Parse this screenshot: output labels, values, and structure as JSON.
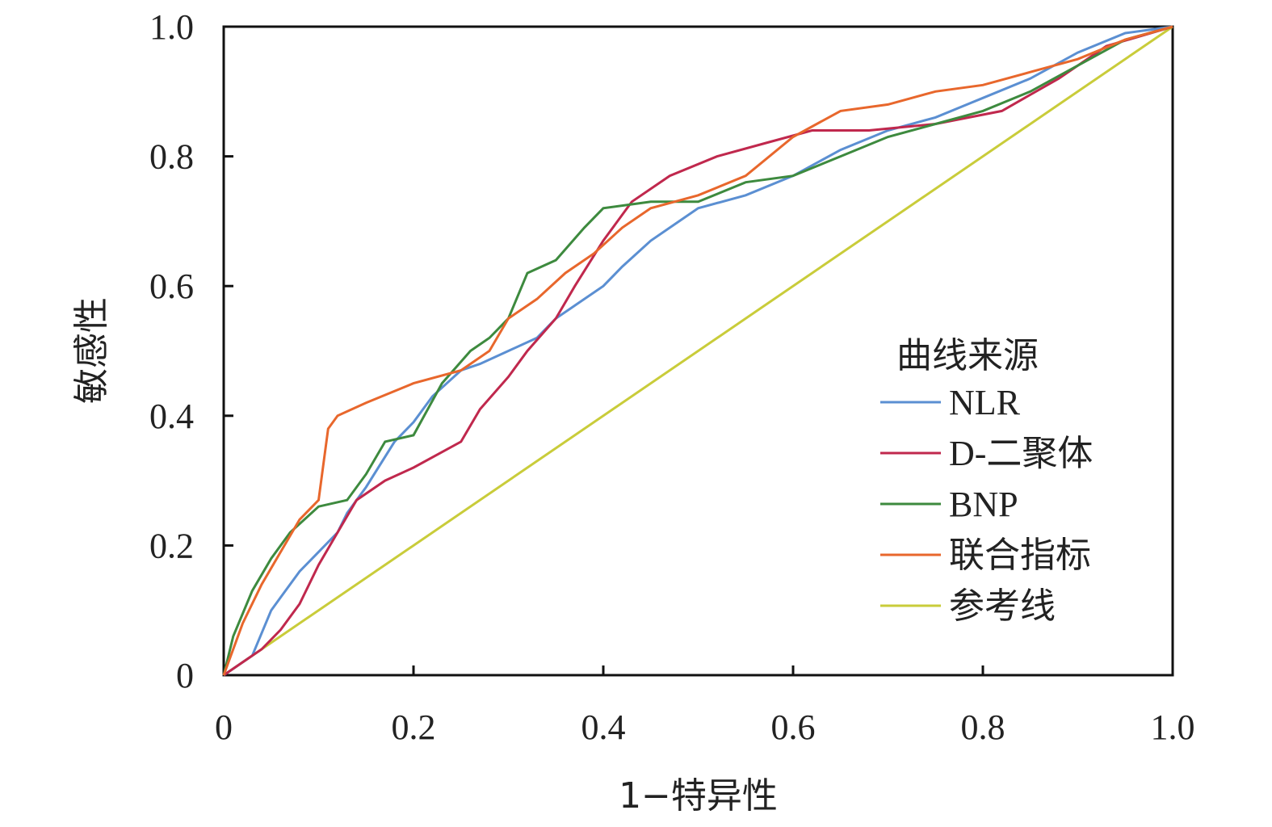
{
  "chart_data": {
    "type": "line",
    "title": "",
    "xlabel": "1−特异性",
    "ylabel": "敏感性",
    "xlim": [
      0,
      1
    ],
    "ylim": [
      0,
      1
    ],
    "grid": false,
    "legend_position": "right",
    "x_ticks": [
      "0",
      "0.2",
      "0.4",
      "0.6",
      "0.8",
      "1.0"
    ],
    "y_ticks": [
      "0",
      "0.2",
      "0.4",
      "0.6",
      "0.8",
      "1.0"
    ],
    "legend_title": "曲线来源",
    "series": [
      {
        "name": "NLR",
        "color": "#5b8fd2",
        "points": [
          [
            0,
            0
          ],
          [
            0.03,
            0.03
          ],
          [
            0.05,
            0.1
          ],
          [
            0.06,
            0.12
          ],
          [
            0.08,
            0.16
          ],
          [
            0.1,
            0.19
          ],
          [
            0.12,
            0.22
          ],
          [
            0.13,
            0.25
          ],
          [
            0.15,
            0.29
          ],
          [
            0.18,
            0.36
          ],
          [
            0.2,
            0.39
          ],
          [
            0.22,
            0.43
          ],
          [
            0.25,
            0.47
          ],
          [
            0.27,
            0.48
          ],
          [
            0.3,
            0.5
          ],
          [
            0.33,
            0.52
          ],
          [
            0.35,
            0.55
          ],
          [
            0.37,
            0.57
          ],
          [
            0.4,
            0.6
          ],
          [
            0.42,
            0.63
          ],
          [
            0.45,
            0.67
          ],
          [
            0.48,
            0.7
          ],
          [
            0.5,
            0.72
          ],
          [
            0.55,
            0.74
          ],
          [
            0.6,
            0.77
          ],
          [
            0.65,
            0.81
          ],
          [
            0.7,
            0.84
          ],
          [
            0.75,
            0.86
          ],
          [
            0.8,
            0.89
          ],
          [
            0.85,
            0.92
          ],
          [
            0.9,
            0.96
          ],
          [
            0.95,
            0.99
          ],
          [
            1,
            1
          ]
        ]
      },
      {
        "name": "D-二聚体",
        "color": "#c0284d",
        "points": [
          [
            0,
            0
          ],
          [
            0.04,
            0.04
          ],
          [
            0.06,
            0.07
          ],
          [
            0.08,
            0.11
          ],
          [
            0.1,
            0.17
          ],
          [
            0.12,
            0.22
          ],
          [
            0.14,
            0.27
          ],
          [
            0.17,
            0.3
          ],
          [
            0.2,
            0.32
          ],
          [
            0.25,
            0.36
          ],
          [
            0.27,
            0.41
          ],
          [
            0.3,
            0.46
          ],
          [
            0.32,
            0.5
          ],
          [
            0.35,
            0.55
          ],
          [
            0.37,
            0.6
          ],
          [
            0.4,
            0.67
          ],
          [
            0.43,
            0.73
          ],
          [
            0.47,
            0.77
          ],
          [
            0.52,
            0.8
          ],
          [
            0.57,
            0.82
          ],
          [
            0.62,
            0.84
          ],
          [
            0.68,
            0.84
          ],
          [
            0.75,
            0.85
          ],
          [
            0.82,
            0.87
          ],
          [
            0.88,
            0.92
          ],
          [
            0.93,
            0.97
          ],
          [
            1,
            1
          ]
        ]
      },
      {
        "name": "BNP",
        "color": "#3d8a3e",
        "points": [
          [
            0,
            0
          ],
          [
            0.01,
            0.06
          ],
          [
            0.03,
            0.13
          ],
          [
            0.05,
            0.18
          ],
          [
            0.07,
            0.22
          ],
          [
            0.1,
            0.26
          ],
          [
            0.13,
            0.27
          ],
          [
            0.15,
            0.31
          ],
          [
            0.17,
            0.36
          ],
          [
            0.2,
            0.37
          ],
          [
            0.23,
            0.45
          ],
          [
            0.26,
            0.5
          ],
          [
            0.28,
            0.52
          ],
          [
            0.3,
            0.55
          ],
          [
            0.32,
            0.62
          ],
          [
            0.35,
            0.64
          ],
          [
            0.38,
            0.69
          ],
          [
            0.4,
            0.72
          ],
          [
            0.45,
            0.73
          ],
          [
            0.5,
            0.73
          ],
          [
            0.55,
            0.76
          ],
          [
            0.6,
            0.77
          ],
          [
            0.65,
            0.8
          ],
          [
            0.7,
            0.83
          ],
          [
            0.75,
            0.85
          ],
          [
            0.8,
            0.87
          ],
          [
            0.85,
            0.9
          ],
          [
            0.9,
            0.94
          ],
          [
            0.95,
            0.98
          ],
          [
            1,
            1
          ]
        ]
      },
      {
        "name": "联合指标",
        "color": "#e8672c",
        "points": [
          [
            0,
            0
          ],
          [
            0.02,
            0.08
          ],
          [
            0.04,
            0.14
          ],
          [
            0.06,
            0.19
          ],
          [
            0.08,
            0.24
          ],
          [
            0.1,
            0.27
          ],
          [
            0.11,
            0.38
          ],
          [
            0.12,
            0.4
          ],
          [
            0.15,
            0.42
          ],
          [
            0.2,
            0.45
          ],
          [
            0.25,
            0.47
          ],
          [
            0.28,
            0.5
          ],
          [
            0.3,
            0.55
          ],
          [
            0.33,
            0.58
          ],
          [
            0.36,
            0.62
          ],
          [
            0.39,
            0.65
          ],
          [
            0.42,
            0.69
          ],
          [
            0.45,
            0.72
          ],
          [
            0.5,
            0.74
          ],
          [
            0.55,
            0.77
          ],
          [
            0.6,
            0.83
          ],
          [
            0.65,
            0.87
          ],
          [
            0.7,
            0.88
          ],
          [
            0.75,
            0.9
          ],
          [
            0.8,
            0.91
          ],
          [
            0.85,
            0.93
          ],
          [
            0.9,
            0.95
          ],
          [
            0.95,
            0.98
          ],
          [
            1,
            1
          ]
        ]
      },
      {
        "name": "参考线",
        "color": "#c9cc3a",
        "points": [
          [
            0,
            0
          ],
          [
            1,
            1
          ]
        ]
      }
    ]
  }
}
